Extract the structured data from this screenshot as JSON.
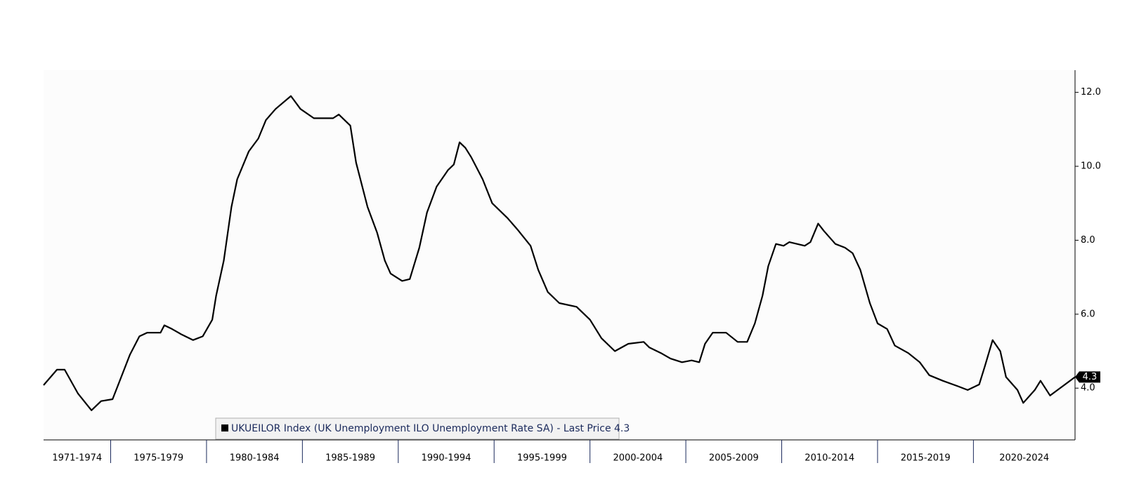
{
  "chart_data": {
    "type": "line",
    "x": [
      1971.5,
      1972.2,
      1972.6,
      1973.3,
      1974.0,
      1974.5,
      1975.1,
      1975.4,
      1976.0,
      1976.5,
      1976.9,
      1977.6,
      1977.8,
      1978.2,
      1978.7,
      1979.3,
      1979.8,
      1980.3,
      1980.5,
      1980.9,
      1981.3,
      1981.6,
      1982.2,
      1982.7,
      1983.1,
      1983.6,
      1984.4,
      1984.9,
      1985.6,
      1986.6,
      1986.9,
      1987.5,
      1987.8,
      1988.4,
      1988.9,
      1989.3,
      1989.6,
      1990.2,
      1990.6,
      1991.1,
      1991.5,
      1992.0,
      1992.6,
      1992.9,
      1993.2,
      1993.5,
      1993.8,
      1994.4,
      1994.9,
      1995.7,
      1996.2,
      1996.9,
      1997.3,
      1997.8,
      1998.4,
      1999.3,
      2000.0,
      2000.6,
      2001.3,
      2002.0,
      2002.8,
      2003.1,
      2003.7,
      2004.2,
      2004.8,
      2005.3,
      2005.7,
      2006.0,
      2006.4,
      2007.1,
      2007.7,
      2008.2,
      2008.6,
      2009.0,
      2009.3,
      2009.7,
      2010.1,
      2010.4,
      2011.2,
      2011.5,
      2011.9,
      2012.2,
      2012.8,
      2013.3,
      2013.7,
      2014.1,
      2014.6,
      2015.0,
      2015.5,
      2015.9,
      2016.6,
      2017.2,
      2017.7,
      2018.4,
      2019.2,
      2019.7,
      2020.3,
      2020.6,
      2021.0,
      2021.4,
      2021.7,
      2022.3,
      2022.6,
      2023.2,
      2023.5,
      2024.0,
      2025.3
    ],
    "series": [
      {
        "name": "UKUEILOR Index (UK Unemployment ILO Unemployment Rate SA) - Last Price 4.3",
        "color": "#000000",
        "values": [
          4.08,
          4.5,
          4.5,
          3.85,
          3.4,
          3.65,
          3.7,
          4.1,
          4.9,
          5.4,
          5.5,
          5.5,
          5.7,
          5.6,
          5.45,
          5.3,
          5.4,
          5.85,
          6.5,
          7.45,
          8.9,
          9.65,
          10.4,
          10.75,
          11.25,
          11.55,
          11.9,
          11.55,
          11.3,
          11.3,
          11.4,
          11.1,
          10.1,
          8.9,
          8.2,
          7.45,
          7.1,
          6.9,
          6.95,
          7.8,
          8.75,
          9.45,
          9.9,
          10.05,
          10.65,
          10.5,
          10.25,
          9.65,
          9.0,
          8.6,
          8.3,
          7.85,
          7.2,
          6.6,
          6.3,
          6.2,
          5.85,
          5.35,
          5.0,
          5.2,
          5.25,
          5.1,
          4.95,
          4.8,
          4.7,
          4.75,
          4.7,
          5.2,
          5.5,
          5.5,
          5.25,
          5.25,
          5.75,
          6.5,
          7.3,
          7.9,
          7.85,
          7.95,
          7.85,
          7.95,
          8.45,
          8.25,
          7.9,
          7.8,
          7.65,
          7.2,
          6.3,
          5.75,
          5.6,
          5.15,
          4.95,
          4.7,
          4.35,
          4.2,
          4.05,
          3.95,
          4.1,
          4.6,
          5.3,
          5.0,
          4.3,
          3.95,
          3.6,
          3.95,
          4.2,
          3.8,
          4.3
        ]
      }
    ],
    "last_price": 4.3,
    "xlim": [
      1971.5,
      2025.3
    ],
    "xticks": [
      1975,
      1980,
      1985,
      1990,
      1995,
      2000,
      2005,
      2010,
      2015,
      2020
    ],
    "period_labels": [
      "1971-1974",
      "1975-1979",
      "1980-1984",
      "1985-1989",
      "1990-1994",
      "1995-1999",
      "2000-2004",
      "2005-2009",
      "2010-2014",
      "2015-2019",
      "2020-2024"
    ],
    "ylim": [
      2.6,
      12.6
    ],
    "yticks": [
      {
        "value": 4,
        "label": "4.0"
      },
      {
        "value": 6,
        "label": "6.0"
      },
      {
        "value": 8,
        "label": "8.0"
      },
      {
        "value": 10,
        "label": "10.0"
      },
      {
        "value": 12,
        "label": "12.0"
      }
    ],
    "grid": false
  }
}
